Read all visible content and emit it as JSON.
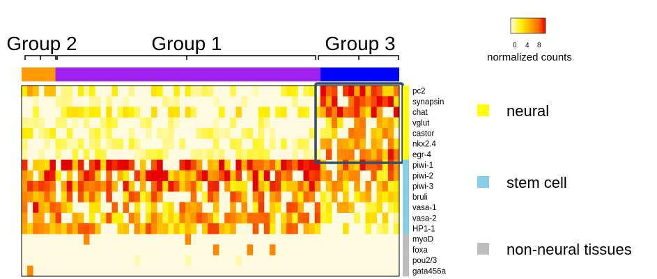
{
  "chart_data": {
    "type": "heatmap",
    "color_legend": {
      "title": "normalized counts",
      "ticks": [
        "0",
        "4",
        "8"
      ],
      "range": [
        0,
        10
      ],
      "colors": [
        "#fffbe0",
        "#fff200",
        "#ffb000",
        "#ff6a00",
        "#e60000"
      ]
    },
    "groups": [
      {
        "label": "Group 2",
        "color": "#ff9900",
        "n_samples": 6
      },
      {
        "label": "Group 1",
        "color": "#a020f0",
        "n_samples": 47
      },
      {
        "label": "Group 3",
        "color": "#0000ff",
        "n_samples": 14
      }
    ],
    "rows": [
      "pc2",
      "synapsin",
      "chat",
      "vglut",
      "castor",
      "nkx2.4",
      "egr-4",
      "piwi-1",
      "piwi-2",
      "piwi-3",
      "bruli",
      "vasa-1",
      "vasa-2",
      "HP1-1",
      "myoD",
      "foxa",
      "pou2/3",
      "gata456a"
    ],
    "categories": [
      {
        "label": "neural",
        "color": "#ffff00",
        "rows": 7
      },
      {
        "label": "stem cell",
        "color": "#87ceeb",
        "rows": 7
      },
      {
        "label": "non-neural tissues",
        "color": "#bebebe",
        "rows": 4
      }
    ],
    "row_category": [
      "neural",
      "neural",
      "neural",
      "neural",
      "neural",
      "neural",
      "neural",
      "stem cell",
      "stem cell",
      "stem cell",
      "stem cell",
      "stem cell",
      "stem cell",
      "stem cell",
      "non-neural tissues",
      "non-neural tissues",
      "non-neural tissues",
      "non-neural tissues"
    ],
    "row_mean_by_group": [
      [
        3,
        1.5,
        7
      ],
      [
        0.5,
        0.5,
        7
      ],
      [
        1,
        2,
        7
      ],
      [
        0.5,
        1,
        4
      ],
      [
        1.5,
        1,
        4
      ],
      [
        1,
        1,
        4
      ],
      [
        0.5,
        1,
        6
      ],
      [
        8.5,
        8,
        6
      ],
      [
        8,
        7,
        5
      ],
      [
        7,
        6,
        4
      ],
      [
        5,
        5,
        3
      ],
      [
        7,
        5,
        3
      ],
      [
        6,
        5,
        2
      ],
      [
        4,
        5,
        2
      ],
      [
        0,
        0,
        0
      ],
      [
        0,
        0,
        0
      ],
      [
        0,
        0.3,
        0
      ],
      [
        0,
        0.2,
        0
      ]
    ],
    "highlight": {
      "group": "Group 3",
      "row_category": "neural"
    }
  }
}
